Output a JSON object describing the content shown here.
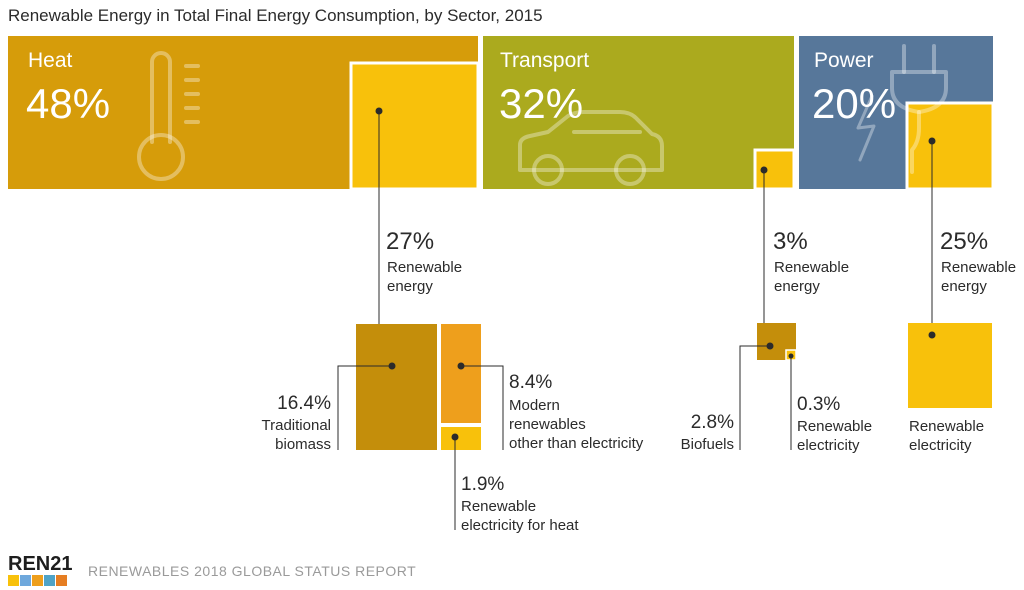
{
  "colors": {
    "heat": "#D69C0A",
    "transport": "#ABAA1E",
    "power": "#57779A",
    "renewable": "#F8C10B",
    "traditional_biomass": "#C48E0B",
    "modern_renewables": "#EE9F1C",
    "biofuels": "#C48E0B"
  },
  "chart_data": {
    "type": "treemap",
    "title": "Renewable Energy in Total Final Energy Consumption, by Sector, 2015",
    "unit": "%",
    "sectors": [
      {
        "key": "heat",
        "name": "Heat",
        "share_label": "48%",
        "share": 48,
        "renewable_share": 27,
        "renewable_label": "27%",
        "renewable_text_1": "Renewable",
        "renewable_text_2": "energy",
        "icon": "thermometer-icon",
        "breakdown": [
          {
            "value": 16.4,
            "value_label": "16.4%",
            "label_lines": [
              "Traditional",
              "biomass"
            ],
            "color_key": "traditional_biomass"
          },
          {
            "value": 8.4,
            "value_label": "8.4%",
            "label_lines": [
              "Modern",
              "renewables",
              "other than electricity"
            ],
            "color_key": "modern_renewables"
          },
          {
            "value": 1.9,
            "value_label": "1.9%",
            "label_lines": [
              "Renewable",
              "electricity for heat"
            ],
            "color_key": "renewable"
          }
        ]
      },
      {
        "key": "transport",
        "name": "Transport",
        "share_label": "32%",
        "share": 32,
        "renewable_share": 3,
        "renewable_label": "3%",
        "renewable_text_1": "Renewable",
        "renewable_text_2": "energy",
        "icon": "car-icon",
        "breakdown": [
          {
            "value": 2.8,
            "value_label": "2.8%",
            "label_lines": [
              "Biofuels"
            ],
            "color_key": "biofuels"
          },
          {
            "value": 0.3,
            "value_label": "0.3%",
            "label_lines": [
              "Renewable",
              "electricity"
            ],
            "color_key": "renewable"
          }
        ]
      },
      {
        "key": "power",
        "name": "Power",
        "share_label": "20%",
        "share": 20,
        "renewable_share": 25,
        "renewable_label": "25%",
        "renewable_text_1": "Renewable",
        "renewable_text_2": "energy",
        "icon": "plug-icon",
        "breakdown": [
          {
            "value": 25,
            "value_label": "",
            "label_lines": [
              "Renewable",
              "electricity"
            ],
            "color_key": "renewable"
          }
        ]
      }
    ]
  },
  "footer": {
    "brand": "REN21",
    "report": "RENEWABLES 2018 GLOBAL STATUS REPORT"
  }
}
